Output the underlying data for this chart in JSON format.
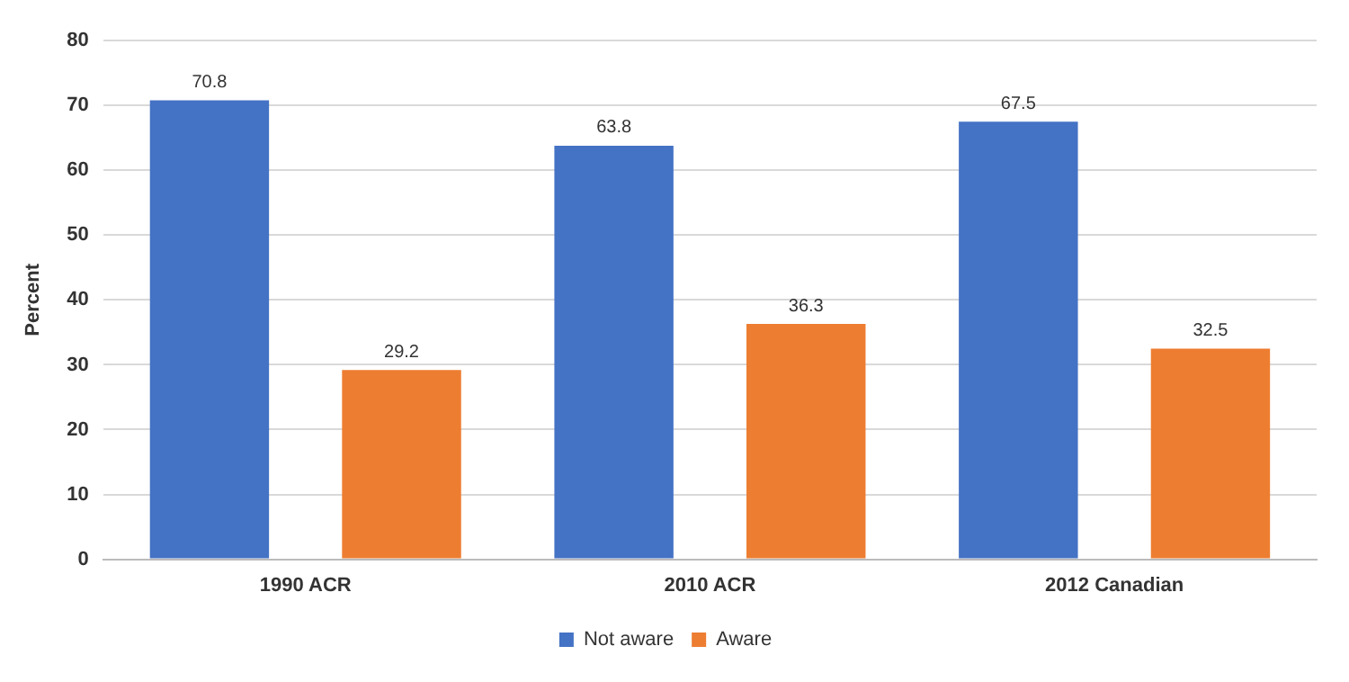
{
  "chart_data": {
    "type": "bar",
    "ylabel": "Percent",
    "categories": [
      "1990 ACR",
      "2010 ACR",
      "2012 Canadian"
    ],
    "series": [
      {
        "name": "Not aware",
        "color": "#4472c4",
        "values": [
          70.8,
          63.8,
          67.5
        ]
      },
      {
        "name": "Aware",
        "color": "#ed7d31",
        "values": [
          29.2,
          36.3,
          32.5
        ]
      }
    ],
    "ylim": [
      0,
      80
    ],
    "yticks": [
      0,
      10,
      20,
      30,
      40,
      50,
      60,
      70,
      80
    ],
    "grid": "y",
    "legend": "bottom",
    "data_labels": true
  }
}
